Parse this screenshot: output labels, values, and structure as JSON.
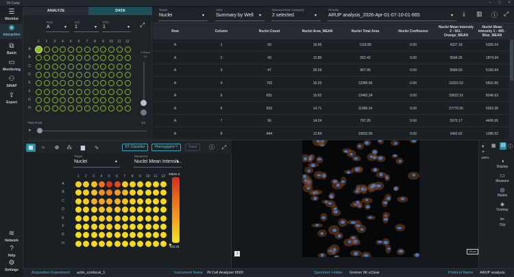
{
  "app": {
    "title": "IN Carta"
  },
  "nav": [
    {
      "label": "Worklist",
      "icon": "list-icon"
    },
    {
      "label": "Interactive",
      "icon": "eye-icon",
      "active": true
    },
    {
      "label": "Batch",
      "icon": "batch-icon"
    },
    {
      "label": "Monitoring",
      "icon": "monitor-icon"
    },
    {
      "label": "SINAP",
      "icon": "sinap-icon"
    },
    {
      "label": "Export",
      "icon": "export-icon"
    },
    {
      "label": "Network",
      "icon": "wifi-icon"
    },
    {
      "label": "Help",
      "icon": "help-icon"
    },
    {
      "label": "Settings",
      "icon": "gear-icon"
    }
  ],
  "tabs": {
    "analyze": "ANALYZE",
    "data": "DATA"
  },
  "plate_selector": {
    "row_label": "Row",
    "row_value": "A",
    "col_label": "Col",
    "col_value": "1",
    "fov_label": "FOV",
    "fov_value": "1",
    "rows": [
      "A",
      "B",
      "C",
      "D",
      "E",
      "F",
      "G",
      "H"
    ],
    "cols": [
      "1",
      "2",
      "3",
      "4",
      "5",
      "6",
      "7",
      "8",
      "9",
      "10",
      "11",
      "12"
    ],
    "plane_label": "Z Plane",
    "plane_value": "1/1",
    "timepoint_label": "Time Point",
    "timepoint_value": "1/1"
  },
  "filters": {
    "target_label": "Target",
    "target_value": "Nuclei",
    "view_label": "View",
    "view_value": "Summary by Well",
    "measurement_label": "Measurement Category",
    "measurement_value": "2 selected",
    "results_label": "Results",
    "results_value": "ARUP analysis_2026-Apr-01-07-10-01-665"
  },
  "table": {
    "headers": [
      "Row",
      "Column",
      "Nuclei Count",
      "Nuclei Area_MEAN",
      "Nuclei Total Area",
      "Nuclei Confluence",
      "Nuclei Mean Intensity 2 : 561 - Orange_MEAN",
      "Nuclei Mean Intensity 1 : 405 - Blue_MEAN"
    ],
    "rows": [
      [
        "A",
        "1",
        "59",
        "18.96",
        "1118.89",
        "0.00",
        "4337.18",
        "5205.54"
      ],
      [
        "A",
        "2",
        "43",
        "12.85",
        "552.42",
        "0.00",
        "5594.25",
        "1874.04"
      ],
      [
        "A",
        "3",
        "47",
        "20.59",
        "967.95",
        "0.00",
        "5589.50",
        "5196.64"
      ],
      [
        "A",
        "4",
        "763",
        "16.23",
        "12385.96",
        "0.00",
        "20322.02",
        "5816.80"
      ],
      [
        "A",
        "5",
        "831",
        "15.02",
        "12482.34",
        "0.00",
        "33622.31",
        "8246.63"
      ],
      [
        "A",
        "6",
        "815",
        "14.71",
        "11990.34",
        "0.00",
        "27776.55",
        "5353.36"
      ],
      [
        "A",
        "7",
        "56",
        "14.24",
        "797.26",
        "0.00",
        "5975.17",
        "4406.06"
      ],
      [
        "A",
        "8",
        "844",
        "12.84",
        "10832.90",
        "0.00",
        "3492.62",
        "1286.52"
      ]
    ]
  },
  "heatmap_panel": {
    "buttons": {
      "classifier": "DT-Classifier",
      "phenoglyphs": "Phenoglyphs™",
      "track": "Track"
    },
    "target_label": "Target",
    "target_value": "Nuclei",
    "measures_label": "Measures",
    "measures_value": "Nuclei Mean Intensit...",
    "scale_max": "33622.3",
    "scale_min": "515.41",
    "levels": [
      [
        0.12,
        0.15,
        0.2,
        0.6,
        0.95,
        0.82,
        0.15,
        0.1,
        0.1,
        0.08,
        0.08,
        0.08
      ],
      [
        0.1,
        0.12,
        0.2,
        0.45,
        0.55,
        0.4,
        0.25,
        0.1,
        0.08,
        0.08,
        0.08,
        0.08
      ],
      [
        0.08,
        0.15,
        0.3,
        0.35,
        0.35,
        0.28,
        0.2,
        0.12,
        0.08,
        0.06,
        0.06,
        0.06
      ],
      [
        0.06,
        0.1,
        0.12,
        0.18,
        0.18,
        0.15,
        0.12,
        0.08,
        0.06,
        0.05,
        0.05,
        0.05
      ],
      [
        0.05,
        0.08,
        0.1,
        0.12,
        0.12,
        0.1,
        0.08,
        0.06,
        0.05,
        0.05,
        0.05,
        0.05
      ],
      [
        0.05,
        0.06,
        0.08,
        0.1,
        0.1,
        0.08,
        0.07,
        0.05,
        0.05,
        0.05,
        0.05,
        0.05
      ],
      [
        0.05,
        0.05,
        0.06,
        0.08,
        0.08,
        0.07,
        0.06,
        0.05,
        0.05,
        0.05,
        0.05,
        0.05
      ],
      [
        0.05,
        0.05,
        0.05,
        0.06,
        0.06,
        0.05,
        0.05,
        0.05,
        0.05,
        0.05,
        0.05,
        0.05
      ]
    ]
  },
  "image_panel": {
    "scale_bar": "100 µm",
    "zoom": "100%",
    "channel_badge": "1"
  },
  "right_tools": [
    {
      "label": "Display",
      "icon": "contrast-icon"
    },
    {
      "label": "Measure",
      "icon": "measure-icon"
    },
    {
      "label": "Masks",
      "icon": "mask-icon"
    },
    {
      "label": "Overlay",
      "icon": "layers-icon"
    },
    {
      "label": "Clip",
      "icon": "scissors-icon"
    }
  ],
  "status": {
    "acq_label": "Acquisition Experiment",
    "acq_value": "actin_confocal_1",
    "instr_label": "Instrument Name",
    "instr_value": "IN Cell Analyzer 6500",
    "spec_label": "Specimen Holder",
    "spec_value": "Greiner 96 uClear",
    "proto_label": "Protocol Name",
    "proto_value": "ARUP analysis"
  },
  "colors": {
    "accent": "#3aa6bf",
    "well_ring": "#8dbb2a",
    "heat_low": "#f5e51b",
    "heat_high": "#d62a1e"
  }
}
